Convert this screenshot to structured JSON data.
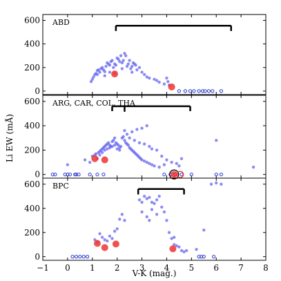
{
  "chart_data": {
    "type": "scatter",
    "xlabel": "V-K (mag.)",
    "ylabel": "Li EW (mÅ)",
    "xlim": [
      -1,
      8
    ],
    "x_ticks": [
      -1,
      0,
      1,
      2,
      3,
      4,
      5,
      6,
      7,
      8
    ],
    "ylim": [
      -30,
      650
    ],
    "y_ticks": [
      0,
      200,
      400,
      600
    ],
    "colors": {
      "members": "#6666ee",
      "highlight": "#ee3333",
      "ring_black": "#000000",
      "ring_red": "#ee3333"
    },
    "panels": [
      {
        "label": "ABD",
        "range_bars": [
          {
            "x": [
              1.95,
              6.6
            ],
            "y": 555,
            "tick_down_to": 510
          }
        ],
        "points": [
          [
            0.95,
            80
          ],
          [
            1.0,
            100
          ],
          [
            1.05,
            120
          ],
          [
            1.1,
            140
          ],
          [
            1.15,
            150
          ],
          [
            1.2,
            175
          ],
          [
            1.25,
            180
          ],
          [
            1.3,
            160
          ],
          [
            1.35,
            190
          ],
          [
            1.4,
            200
          ],
          [
            1.45,
            180
          ],
          [
            1.5,
            165
          ],
          [
            1.55,
            210
          ],
          [
            1.6,
            240
          ],
          [
            1.65,
            230
          ],
          [
            1.7,
            220
          ],
          [
            1.75,
            250
          ],
          [
            1.8,
            260
          ],
          [
            1.85,
            200
          ],
          [
            1.9,
            230
          ],
          [
            1.95,
            220
          ],
          [
            2.0,
            280
          ],
          [
            2.05,
            270
          ],
          [
            2.1,
            250
          ],
          [
            2.15,
            300
          ],
          [
            2.2,
            240
          ],
          [
            2.25,
            260
          ],
          [
            2.3,
            320
          ],
          [
            2.35,
            300
          ],
          [
            2.4,
            210
          ],
          [
            2.45,
            230
          ],
          [
            2.5,
            260
          ],
          [
            2.55,
            190
          ],
          [
            2.6,
            210
          ],
          [
            2.65,
            240
          ],
          [
            2.7,
            230
          ],
          [
            2.75,
            220
          ],
          [
            2.8,
            180
          ],
          [
            2.9,
            200
          ],
          [
            3.0,
            160
          ],
          [
            3.1,
            140
          ],
          [
            3.2,
            120
          ],
          [
            3.3,
            110
          ],
          [
            3.5,
            100
          ],
          [
            3.6,
            90
          ],
          [
            3.7,
            75
          ],
          [
            3.9,
            60
          ],
          [
            4.0,
            110
          ],
          [
            4.05,
            80
          ],
          [
            4.1,
            50
          ],
          [
            1.2,
            140
          ],
          [
            1.7,
            160
          ],
          [
            2.2,
            190
          ],
          [
            2.6,
            160
          ],
          [
            1.5,
            130
          ],
          [
            1.9,
            150
          ]
        ],
        "open_points": [
          [
            4.5,
            0
          ],
          [
            4.75,
            0
          ],
          [
            4.95,
            0
          ],
          [
            5.1,
            0
          ],
          [
            5.3,
            0
          ],
          [
            5.45,
            0
          ],
          [
            5.55,
            0
          ],
          [
            5.7,
            0
          ],
          [
            5.85,
            0
          ],
          [
            6.2,
            0
          ]
        ],
        "highlight_points": [
          [
            1.9,
            145
          ],
          [
            4.2,
            35
          ]
        ]
      },
      {
        "label": "ARG, CAR, COL, THA",
        "range_bars": [
          {
            "x": [
              1.8,
              4.95
            ],
            "y": 560,
            "tick_down_to": 520
          },
          {
            "x": [
              2.3
            ],
            "y": 560,
            "tick_down_to": 515
          }
        ],
        "points": [
          [
            0.0,
            80
          ],
          [
            0.7,
            120
          ],
          [
            0.9,
            100
          ],
          [
            1.0,
            150
          ],
          [
            1.1,
            160
          ],
          [
            1.15,
            170
          ],
          [
            1.2,
            130
          ],
          [
            1.25,
            180
          ],
          [
            1.3,
            190
          ],
          [
            1.35,
            200
          ],
          [
            1.4,
            210
          ],
          [
            1.45,
            220
          ],
          [
            1.5,
            230
          ],
          [
            1.55,
            240
          ],
          [
            1.6,
            250
          ],
          [
            1.65,
            260
          ],
          [
            1.7,
            240
          ],
          [
            1.75,
            230
          ],
          [
            1.8,
            270
          ],
          [
            1.85,
            280
          ],
          [
            1.9,
            300
          ],
          [
            1.95,
            260
          ],
          [
            2.0,
            250
          ],
          [
            2.05,
            240
          ],
          [
            2.1,
            220
          ],
          [
            2.15,
            230
          ],
          [
            2.2,
            300
          ],
          [
            2.25,
            310
          ],
          [
            2.3,
            280
          ],
          [
            2.35,
            260
          ],
          [
            2.4,
            250
          ],
          [
            2.45,
            240
          ],
          [
            2.5,
            220
          ],
          [
            2.55,
            210
          ],
          [
            2.6,
            200
          ],
          [
            2.65,
            190
          ],
          [
            2.7,
            180
          ],
          [
            2.75,
            170
          ],
          [
            2.8,
            160
          ],
          [
            2.85,
            150
          ],
          [
            2.9,
            140
          ],
          [
            2.95,
            130
          ],
          [
            3.0,
            120
          ],
          [
            3.1,
            110
          ],
          [
            3.2,
            100
          ],
          [
            3.3,
            90
          ],
          [
            3.4,
            80
          ],
          [
            3.5,
            70
          ],
          [
            1.5,
            200
          ],
          [
            1.6,
            210
          ],
          [
            1.7,
            220
          ],
          [
            1.8,
            230
          ],
          [
            1.9,
            240
          ],
          [
            2.0,
            210
          ],
          [
            2.1,
            200
          ],
          [
            1.4,
            180
          ],
          [
            1.3,
            160
          ],
          [
            2.4,
            330
          ],
          [
            2.6,
            350
          ],
          [
            2.8,
            370
          ],
          [
            3.0,
            380
          ],
          [
            3.2,
            400
          ],
          [
            2.3,
            360
          ],
          [
            2.5,
            300
          ],
          [
            2.7,
            280
          ],
          [
            2.9,
            260
          ],
          [
            3.1,
            250
          ],
          [
            3.3,
            230
          ],
          [
            3.4,
            210
          ],
          [
            3.6,
            200
          ],
          [
            3.8,
            150
          ],
          [
            4.0,
            120
          ],
          [
            4.2,
            100
          ],
          [
            4.4,
            90
          ],
          [
            4.5,
            70
          ],
          [
            3.7,
            60
          ],
          [
            3.9,
            80
          ],
          [
            6.0,
            280
          ],
          [
            7.5,
            60
          ],
          [
            4.6,
            130
          ]
        ],
        "open_points": [
          [
            -0.6,
            0
          ],
          [
            -0.5,
            0
          ],
          [
            -0.1,
            0
          ],
          [
            0.0,
            0
          ],
          [
            0.1,
            0
          ],
          [
            0.3,
            0
          ],
          [
            0.35,
            0
          ],
          [
            0.45,
            0
          ],
          [
            0.9,
            0
          ],
          [
            1.2,
            0
          ],
          [
            1.45,
            0
          ],
          [
            3.9,
            0
          ],
          [
            4.15,
            0
          ],
          [
            4.35,
            0
          ],
          [
            4.6,
            0
          ],
          [
            5.0,
            0
          ],
          [
            6.0,
            0
          ],
          [
            6.2,
            0
          ]
        ],
        "highlight_points": [
          [
            1.1,
            130
          ],
          [
            1.5,
            120
          ],
          [
            4.3,
            0
          ]
        ],
        "ring_points": [
          {
            "x": 4.3,
            "y": 0,
            "color": "black"
          },
          {
            "x": 4.55,
            "y": 0,
            "color": "red"
          }
        ]
      },
      {
        "label": "BPC",
        "range_bars": [
          {
            "x": [
              2.85,
              4.7
            ],
            "y": 560,
            "tick_down_to": 515
          }
        ],
        "points": [
          [
            1.1,
            140
          ],
          [
            1.2,
            120
          ],
          [
            1.3,
            190
          ],
          [
            1.4,
            160
          ],
          [
            1.5,
            140
          ],
          [
            1.6,
            130
          ],
          [
            1.7,
            170
          ],
          [
            1.8,
            150
          ],
          [
            1.9,
            210
          ],
          [
            2.0,
            230
          ],
          [
            2.1,
            310
          ],
          [
            2.2,
            350
          ],
          [
            2.3,
            300
          ],
          [
            2.9,
            470
          ],
          [
            3.0,
            450
          ],
          [
            3.1,
            500
          ],
          [
            3.2,
            480
          ],
          [
            3.3,
            490
          ],
          [
            3.4,
            450
          ],
          [
            3.5,
            440
          ],
          [
            3.6,
            470
          ],
          [
            3.7,
            500
          ],
          [
            3.8,
            410
          ],
          [
            3.9,
            370
          ],
          [
            4.0,
            300
          ],
          [
            4.1,
            200
          ],
          [
            4.2,
            150
          ],
          [
            4.3,
            100
          ],
          [
            4.4,
            90
          ],
          [
            4.5,
            80
          ],
          [
            4.6,
            50
          ],
          [
            4.7,
            40
          ],
          [
            5.2,
            60
          ],
          [
            3.0,
            370
          ],
          [
            3.2,
            330
          ],
          [
            3.4,
            390
          ],
          [
            3.6,
            350
          ],
          [
            4.3,
            160
          ],
          [
            4.8,
            50
          ],
          [
            5.5,
            220
          ],
          [
            5.8,
            600
          ],
          [
            6.0,
            610
          ],
          [
            6.2,
            600
          ],
          [
            3.3,
            300
          ]
        ],
        "open_points": [
          [
            0.2,
            0
          ],
          [
            0.35,
            0
          ],
          [
            0.5,
            0
          ],
          [
            0.65,
            0
          ],
          [
            0.8,
            0
          ],
          [
            5.3,
            0
          ],
          [
            5.4,
            0
          ],
          [
            5.5,
            0
          ],
          [
            5.9,
            0
          ]
        ],
        "highlight_points": [
          [
            1.2,
            110
          ],
          [
            1.5,
            75
          ],
          [
            1.95,
            105
          ],
          [
            4.25,
            65
          ]
        ]
      }
    ]
  }
}
